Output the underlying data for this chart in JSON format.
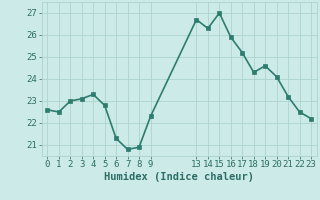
{
  "x": [
    0,
    1,
    2,
    3,
    4,
    5,
    6,
    7,
    8,
    9,
    13,
    14,
    15,
    16,
    17,
    18,
    19,
    20,
    21,
    22,
    23
  ],
  "y": [
    22.6,
    22.5,
    23.0,
    23.1,
    23.3,
    22.8,
    21.3,
    20.8,
    20.9,
    22.3,
    26.7,
    26.3,
    27.0,
    25.9,
    25.2,
    24.3,
    24.6,
    24.1,
    23.2,
    22.5,
    22.2
  ],
  "xticks": [
    0,
    1,
    2,
    3,
    4,
    5,
    6,
    7,
    8,
    9,
    13,
    14,
    15,
    16,
    17,
    18,
    19,
    20,
    21,
    22,
    23
  ],
  "yticks": [
    21,
    22,
    23,
    24,
    25,
    26,
    27
  ],
  "ylim": [
    20.5,
    27.5
  ],
  "xlim": [
    -0.5,
    23.5
  ],
  "xlabel": "Humidex (Indice chaleur)",
  "line_color": "#2d7d6e",
  "marker_color": "#2d7d6e",
  "bg_color": "#cceae8",
  "grid_color": "#aed4d0",
  "text_color": "#2d6e64",
  "xlabel_fontsize": 7.5,
  "tick_fontsize": 6.5,
  "line_width": 1.2,
  "marker_size": 2.5
}
